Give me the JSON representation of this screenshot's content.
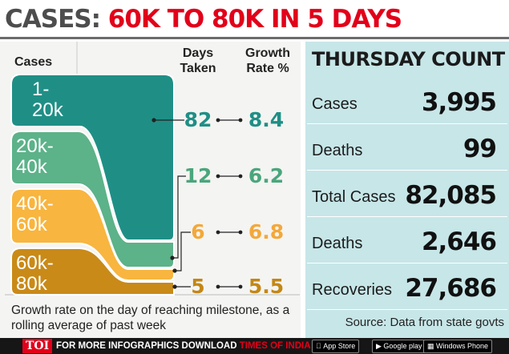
{
  "headline": {
    "lead": "CASES:",
    "rest": "60K TO 80K IN 5 DAYS"
  },
  "colors": {
    "band1": "#1f8f86",
    "band2": "#5cb289",
    "band3": "#f8b53f",
    "band4": "#c98a18",
    "teal_text": "#1f8f86",
    "green_text": "#4aa67c",
    "orange_text": "#f3a83a",
    "brown_text": "#c48714",
    "headline_red": "#e2001a",
    "panel": "#c7e6e8"
  },
  "chart_data": {
    "type": "table",
    "title": "CASES: 60K TO 80K IN 5 DAYS",
    "columns": [
      "Cases",
      "Days Taken",
      "Growth Rate %"
    ],
    "headers": {
      "cases": "Cases",
      "days_l1": "Days",
      "days_l2": "Taken",
      "rate_l1": "Growth",
      "rate_l2": "Rate %"
    },
    "bands": [
      {
        "line1": "1-",
        "line2": "20k",
        "days": "82",
        "rate": "8.4"
      },
      {
        "line1": "20k-",
        "line2": "40k",
        "days": "12",
        "rate": "6.2"
      },
      {
        "line1": "40k-",
        "line2": "60k",
        "days": "6",
        "rate": "6.8"
      },
      {
        "line1": "60k-",
        "line2": "80k",
        "days": "5",
        "rate": "5.5"
      }
    ],
    "note": "Growth rate on the day of reaching milestone, as a rolling average of past week"
  },
  "thursday": {
    "title": "THURSDAY COUNT",
    "rows": [
      {
        "label": "Cases",
        "value": "3,995"
      },
      {
        "label": "Deaths",
        "value": "99"
      },
      {
        "label": "Total Cases",
        "value": "82,085"
      },
      {
        "label": "Deaths",
        "value": "2,646"
      },
      {
        "label": "Recoveries",
        "value": "27,686"
      }
    ],
    "source": "Source: Data from state govts"
  },
  "footer": {
    "logo": "TOI",
    "text": "FOR MORE INFOGRAPHICS DOWNLOAD",
    "brand": "TIMES OF INDIA APP",
    "appstore": "App Store",
    "googleplay": "Google play",
    "windows": "Windows Phone"
  }
}
